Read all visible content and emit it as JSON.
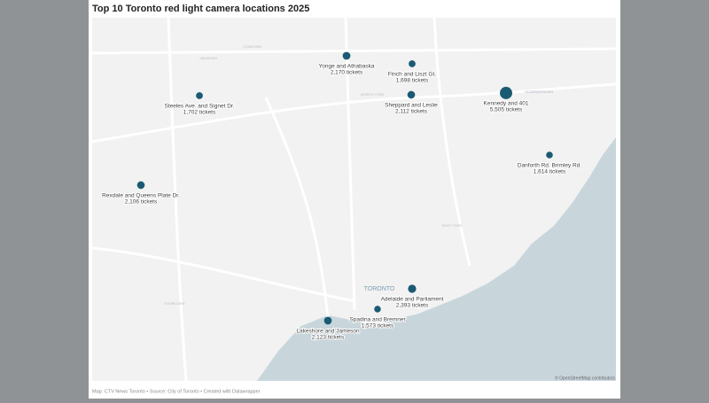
{
  "title": "Top 10 Toronto red light camera locations 2025",
  "locations": [
    {
      "name": "Yonge and Athabaska",
      "tickets": 2170,
      "tickets_label": "2,170 tickets"
    },
    {
      "name": "Finch and Liszt Gt.",
      "tickets": 1698,
      "tickets_label": "1,698 tickets"
    },
    {
      "name": "Steeles Ave. and Signet Dr.",
      "tickets": 1702,
      "tickets_label": "1,702 tickets"
    },
    {
      "name": "Sheppard and Leslie",
      "tickets": 2112,
      "tickets_label": "2,112 tickets"
    },
    {
      "name": "Kennedy and 401",
      "tickets": 5505,
      "tickets_label": "5,505 tickets"
    },
    {
      "name": "Danforth Rd. Brimley Rd.",
      "tickets": 1614,
      "tickets_label": "1,614 tickets"
    },
    {
      "name": "Rexdale and Queens Plate Dr.",
      "tickets": 2106,
      "tickets_label": "2,106 tickets"
    },
    {
      "name": "Adelaide and Parliament",
      "tickets": 2393,
      "tickets_label": "2,393 tickets"
    },
    {
      "name": "Spadina and Bremner",
      "tickets": 1573,
      "tickets_label": "1,573 tickets"
    },
    {
      "name": "Lakeshore and Jameson",
      "tickets": 2123,
      "tickets_label": "2,123 tickets"
    }
  ],
  "place_labels": [
    "TORONTO",
    "NORTH YORK",
    "SCARBOROUGH",
    "EAST YORK",
    "ETOBICOKE",
    "VAUGHAN",
    "CONCORD"
  ],
  "attribution": "© OpenStreetMap contributors",
  "footer": "Map: CTV News Toronto • Source: City of Toronto • Created with Datawrapper"
}
